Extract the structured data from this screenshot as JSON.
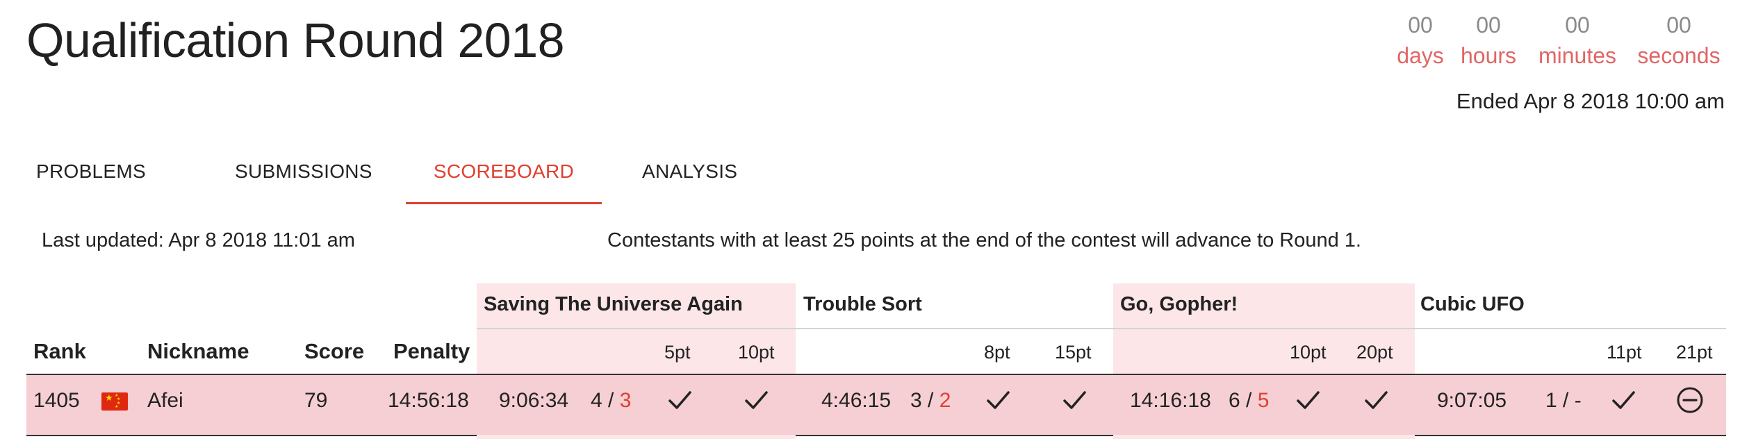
{
  "contest": {
    "title": "Qualification Round 2018",
    "countdown": [
      {
        "value": "00",
        "label": "days"
      },
      {
        "value": "00",
        "label": "hours"
      },
      {
        "value": "00",
        "label": "minutes"
      },
      {
        "value": "00",
        "label": "seconds"
      }
    ],
    "ended": "Ended Apr 8 2018 10:00 am"
  },
  "tabs": [
    {
      "label": "PROBLEMS"
    },
    {
      "label": "SUBMISSIONS"
    },
    {
      "label": "SCOREBOARD",
      "active": true
    },
    {
      "label": "ANALYSIS"
    }
  ],
  "info": {
    "last_updated": "Last updated: Apr 8 2018 11:01 am",
    "advance_note": "Contestants with at least 25 points at the end of the contest will advance to Round 1."
  },
  "scoreboard": {
    "headers": {
      "rank": "Rank",
      "nickname": "Nickname",
      "score": "Score",
      "penalty": "Penalty"
    },
    "problems": [
      {
        "name": "Saving The Universe Again",
        "small_pts": "5pt",
        "large_pts": "10pt"
      },
      {
        "name": "Trouble Sort",
        "small_pts": "8pt",
        "large_pts": "15pt"
      },
      {
        "name": "Go, Gopher!",
        "small_pts": "10pt",
        "large_pts": "20pt"
      },
      {
        "name": "Cubic UFO",
        "small_pts": "11pt",
        "large_pts": "21pt"
      }
    ],
    "row": {
      "rank": "1405",
      "flag": "china-flag",
      "nickname": "Afei",
      "score": "79",
      "penalty": "14:56:18",
      "results": [
        {
          "time": "9:06:34",
          "attempts": "4 /",
          "wrong": "3",
          "small": "check-icon",
          "large": "check-icon"
        },
        {
          "time": "4:46:15",
          "attempts": "3 /",
          "wrong": "2",
          "small": "check-icon",
          "large": "check-icon"
        },
        {
          "time": "14:16:18",
          "attempts": "6 /",
          "wrong": "5",
          "small": "check-icon",
          "large": "check-icon"
        },
        {
          "time": "9:07:05",
          "attempts": "1 / -",
          "wrong": "",
          "small": "check-icon",
          "large": "minus-circle-icon"
        }
      ]
    }
  },
  "colors": {
    "accent": "#e0402f",
    "countdown_label": "#e06666",
    "shade": "#fce6e8",
    "row": "#f5cfd4"
  }
}
